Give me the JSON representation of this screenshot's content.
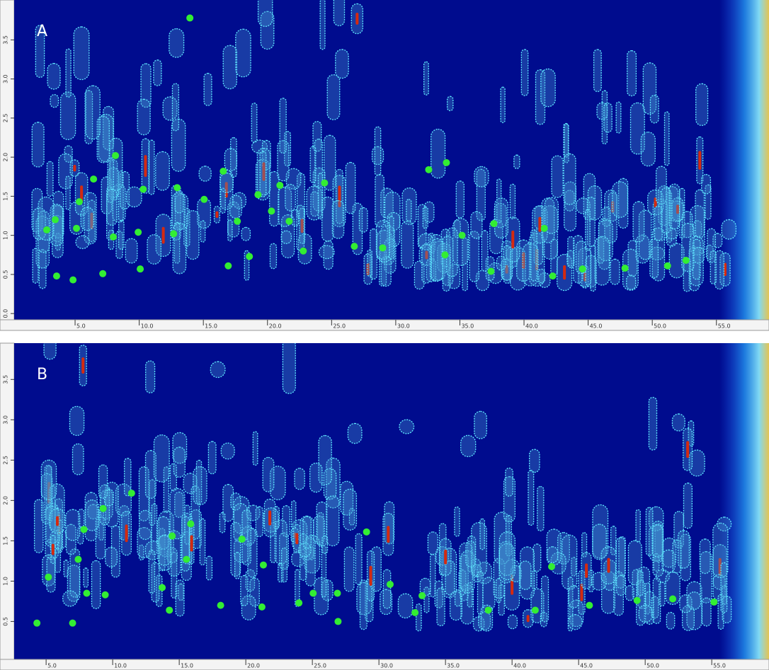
{
  "chart_data": [
    {
      "type": "scatter",
      "label": "A",
      "color": "#33ee33",
      "x": [
        13.95,
        32.57,
        33.95,
        16.55,
        8.15,
        6.44,
        24.45,
        20.97,
        19.26,
        10.31,
        12.96,
        15.06,
        20.31,
        21.69,
        5.33,
        3.45,
        2.79,
        5.11,
        7.98,
        9.92,
        12.68,
        17.65,
        18.59,
        22.79,
        26.77,
        28.98,
        33.84,
        35.17,
        37.65,
        41.58,
        3.56,
        4.84,
        7.16,
        10.08,
        16.94,
        37.43,
        42.24,
        44.56,
        47.87,
        51.19,
        52.63
      ],
      "values": [
        3.78,
        1.84,
        1.93,
        1.82,
        2.02,
        1.72,
        1.67,
        1.64,
        1.52,
        1.59,
        1.61,
        1.46,
        1.31,
        1.18,
        1.43,
        1.2,
        1.07,
        1.09,
        0.98,
        1.04,
        1.02,
        1.18,
        0.73,
        0.8,
        0.86,
        0.84,
        0.75,
        1.0,
        1.15,
        1.09,
        0.48,
        0.43,
        0.51,
        0.57,
        0.61,
        0.54,
        0.48,
        0.57,
        0.58,
        0.61,
        0.68
      ],
      "xlim": [
        0.25,
        59.1
      ],
      "ylim": [
        -0.08,
        4.01
      ],
      "xticks": [
        {
          "value": 5,
          "label": "5.0"
        },
        {
          "value": 10,
          "label": "10.0"
        },
        {
          "value": 15,
          "label": "15.0"
        },
        {
          "value": 20,
          "label": "20.0"
        },
        {
          "value": 25,
          "label": "25.0"
        },
        {
          "value": 30,
          "label": "30.0"
        },
        {
          "value": 35,
          "label": "35.0"
        },
        {
          "value": 40,
          "label": "40.0"
        },
        {
          "value": 45,
          "label": "45.0"
        },
        {
          "value": 50,
          "label": "50.0"
        },
        {
          "value": 55,
          "label": "55.0"
        }
      ],
      "yticks": [
        {
          "value": 0,
          "label": "0.0"
        },
        {
          "value": 0.5,
          "label": "0.5"
        },
        {
          "value": 1,
          "label": "1.0"
        },
        {
          "value": 1.5,
          "label": "1.5"
        },
        {
          "value": 2,
          "label": "2.0"
        },
        {
          "value": 2.5,
          "label": "2.5"
        },
        {
          "value": 3,
          "label": "3.0"
        },
        {
          "value": 3.5,
          "label": "3.5"
        }
      ]
    },
    {
      "type": "scatter",
      "label": "B",
      "color": "#33ee33",
      "x": [
        11.42,
        9.28,
        7.84,
        14.47,
        15.86,
        19.71,
        29.07,
        7.41,
        15.54,
        21.32,
        42.97,
        5.17,
        8.05,
        9.44,
        13.72,
        18.11,
        21.21,
        23.99,
        25.06,
        26.88,
        30.84,
        33.24,
        38.21,
        41.74,
        45.81,
        49.39,
        52.07,
        55.17,
        4.31,
        6.99,
        14.26,
        26.93,
        32.71
      ],
      "values": [
        2.09,
        1.9,
        1.64,
        1.56,
        1.71,
        1.52,
        1.61,
        1.27,
        1.27,
        1.2,
        1.18,
        1.05,
        0.85,
        0.83,
        0.92,
        0.7,
        0.68,
        0.73,
        0.85,
        0.85,
        0.96,
        0.82,
        0.64,
        0.64,
        0.7,
        0.76,
        0.78,
        0.74,
        0.48,
        0.48,
        0.64,
        0.5,
        0.61
      ],
      "xlim": [
        2.6,
        59.3
      ],
      "ylim": [
        0.03,
        3.95
      ],
      "xticks": [
        {
          "value": 5,
          "label": "5.0"
        },
        {
          "value": 10,
          "label": "10.0"
        },
        {
          "value": 15,
          "label": "15.0"
        },
        {
          "value": 20,
          "label": "20.0"
        },
        {
          "value": 25,
          "label": "25.0"
        },
        {
          "value": 30,
          "label": "30.0"
        },
        {
          "value": 35,
          "label": "35.0"
        },
        {
          "value": 40,
          "label": "40.0"
        },
        {
          "value": 45,
          "label": "45.0"
        },
        {
          "value": 50,
          "label": "50.0"
        },
        {
          "value": 55,
          "label": "55.0"
        }
      ],
      "yticks": [
        {
          "value": 0.5,
          "label": "0.5"
        },
        {
          "value": 1,
          "label": "1.0"
        },
        {
          "value": 1.5,
          "label": "1.5"
        },
        {
          "value": 2,
          "label": "2.0"
        },
        {
          "value": 2.5,
          "label": "2.5"
        },
        {
          "value": 3,
          "label": "3.0"
        },
        {
          "value": 3.5,
          "label": "3.5"
        }
      ]
    }
  ]
}
